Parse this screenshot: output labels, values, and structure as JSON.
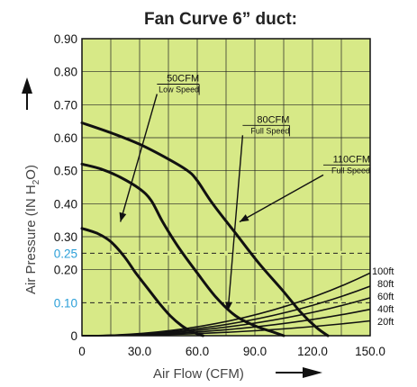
{
  "chart_data": {
    "type": "line",
    "title": "Fan Curve 6” duct:",
    "xlabel": "Air Flow (CFM)",
    "ylabel": "Air Pressure (IN H2O)",
    "ylabel_prefix": "Air Pressure (IN H",
    "ylabel_sub": "2",
    "ylabel_suffix": "O)",
    "xlim": [
      0,
      150
    ],
    "ylim": [
      0,
      0.9
    ],
    "grid": true,
    "plot_color": "#d7e987",
    "highlight_color": "#2b9fd8",
    "x_ticks": [
      {
        "value": 0,
        "label": "0"
      },
      {
        "value": 30,
        "label": "30.0"
      },
      {
        "value": 60,
        "label": "60.0"
      },
      {
        "value": 90,
        "label": "90.0"
      },
      {
        "value": 120,
        "label": "120.0"
      },
      {
        "value": 150,
        "label": "150.0"
      }
    ],
    "y_ticks": [
      {
        "value": 0,
        "label": "0",
        "highlight": false
      },
      {
        "value": 0.1,
        "label": "0.10",
        "highlight": true
      },
      {
        "value": 0.2,
        "label": "0.20",
        "highlight": false
      },
      {
        "value": 0.25,
        "label": "0.25",
        "highlight": true
      },
      {
        "value": 0.3,
        "label": "0.30",
        "highlight": false
      },
      {
        "value": 0.4,
        "label": "0.40",
        "highlight": false
      },
      {
        "value": 0.5,
        "label": "0.50",
        "highlight": false
      },
      {
        "value": 0.6,
        "label": "0.60",
        "highlight": false
      },
      {
        "value": 0.7,
        "label": "0.70",
        "highlight": false
      },
      {
        "value": 0.8,
        "label": "0.80",
        "highlight": false
      },
      {
        "value": 0.9,
        "label": "0.90",
        "highlight": false
      }
    ],
    "reference_lines": [
      0.25,
      0.1
    ],
    "series": [
      {
        "label_top": "50CFM",
        "label_bottom": "Low Speed",
        "points": [
          [
            0,
            0.325
          ],
          [
            8,
            0.31
          ],
          [
            15,
            0.285
          ],
          [
            22,
            0.24
          ],
          [
            28,
            0.19
          ],
          [
            34,
            0.145
          ],
          [
            40,
            0.1
          ],
          [
            46,
            0.06
          ],
          [
            52,
            0.03
          ],
          [
            58,
            0.01
          ],
          [
            63,
            0.0
          ]
        ]
      },
      {
        "label_top": "80CFM",
        "label_bottom": "Full Speed",
        "points": [
          [
            0,
            0.52
          ],
          [
            10,
            0.505
          ],
          [
            20,
            0.48
          ],
          [
            30,
            0.445
          ],
          [
            36,
            0.41
          ],
          [
            42,
            0.345
          ],
          [
            50,
            0.27
          ],
          [
            60,
            0.19
          ],
          [
            70,
            0.115
          ],
          [
            80,
            0.06
          ],
          [
            90,
            0.03
          ],
          [
            100,
            0.01
          ],
          [
            105,
            0.0
          ]
        ]
      },
      {
        "label_top": "110CFM",
        "label_bottom": "Full Speed",
        "points": [
          [
            0,
            0.645
          ],
          [
            15,
            0.615
          ],
          [
            30,
            0.58
          ],
          [
            45,
            0.535
          ],
          [
            55,
            0.5
          ],
          [
            60,
            0.47
          ],
          [
            68,
            0.4
          ],
          [
            80,
            0.31
          ],
          [
            92,
            0.22
          ],
          [
            104,
            0.14
          ],
          [
            114,
            0.07
          ],
          [
            122,
            0.025
          ],
          [
            128,
            0.0
          ]
        ]
      }
    ],
    "annotations": [
      {
        "series": 0,
        "label_x": 61,
        "label_y": 0.765,
        "tip_x": 20,
        "tip_y": 0.345
      },
      {
        "series": 1,
        "label_x": 108,
        "label_y": 0.64,
        "tip_x": 76,
        "tip_y": 0.075
      },
      {
        "series": 2,
        "label_x": 150,
        "label_y": 0.52,
        "tip_x": 82,
        "tip_y": 0.345
      }
    ],
    "system_curves": [
      {
        "label": "100ft",
        "end_y": 0.19
      },
      {
        "label": "80ft",
        "end_y": 0.15
      },
      {
        "label": "60ft",
        "end_y": 0.115
      },
      {
        "label": "40ft",
        "end_y": 0.08
      },
      {
        "label": "20ft",
        "end_y": 0.045
      }
    ]
  }
}
